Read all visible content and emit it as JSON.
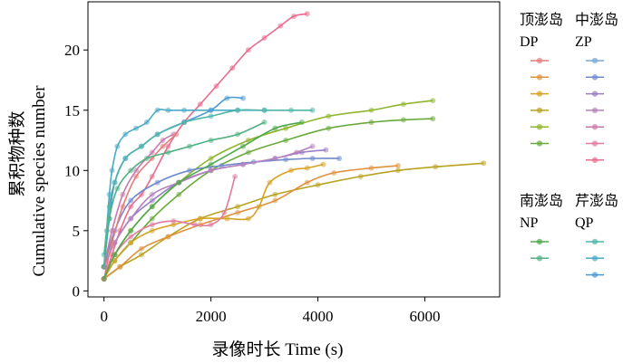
{
  "chart_data": {
    "type": "line",
    "xlabel": "录像时长 Time (s)",
    "ylabel_cn": "累积物种数",
    "ylabel_en": "Cumulative species number",
    "xlim": [
      -300,
      7400
    ],
    "ylim": [
      -0.5,
      24
    ],
    "xticks": [
      0,
      2000,
      4000,
      6000
    ],
    "yticks": [
      0,
      5,
      10,
      15,
      20
    ],
    "legend": {
      "placement": "right",
      "groups": [
        {
          "title": "顶澎岛",
          "code": "DP",
          "colors": [
            "#e57b7b",
            "#e0913f",
            "#d6a224",
            "#b9a21f",
            "#8fb52e",
            "#6aaa3c"
          ]
        },
        {
          "title": "中澎岛",
          "code": "ZP",
          "colors": [
            "#73a8d6",
            "#6f89cc",
            "#9a7fc6",
            "#b681bd",
            "#c77aab",
            "#df7ba0",
            "#e86b8d"
          ]
        },
        {
          "title": "南澎岛",
          "code": "NP",
          "colors": [
            "#4fa84a",
            "#52b184"
          ]
        },
        {
          "title": "芹澎岛",
          "code": "QP",
          "colors": [
            "#4fb5a8",
            "#4aaac6",
            "#4c9bd8"
          ]
        }
      ]
    },
    "series": [
      {
        "color": "#e86b8d",
        "x": [
          0,
          150,
          300,
          500,
          700,
          900,
          1200,
          1500,
          1800,
          2100,
          2400,
          2700,
          3000,
          3300,
          3550,
          3800
        ],
        "y": [
          1,
          3,
          5,
          7,
          8,
          9.5,
          12,
          14,
          15.5,
          17,
          18.5,
          20,
          21,
          22,
          22.8,
          23
        ]
      },
      {
        "color": "#4aaac6",
        "x": [
          0,
          50,
          100,
          150,
          250,
          400,
          600,
          800,
          1000,
          1200,
          1500,
          2000,
          2500,
          3000
        ],
        "y": [
          2,
          5,
          8,
          10,
          12,
          13,
          13.5,
          14,
          15,
          15,
          15,
          15,
          15,
          15
        ]
      },
      {
        "color": "#4c9bd8",
        "x": [
          0,
          100,
          200,
          400,
          700,
          1000,
          1500,
          2000,
          2300,
          2600
        ],
        "y": [
          2,
          6,
          9,
          11,
          12,
          13,
          14,
          15,
          16,
          16
        ]
      },
      {
        "color": "#4fb5a8",
        "x": [
          0,
          100,
          200,
          400,
          700,
          1000,
          1500,
          2000,
          2500,
          3000,
          3500,
          3900
        ],
        "y": [
          3,
          7,
          9,
          11,
          12,
          13,
          14,
          14.5,
          15,
          15,
          15,
          15
        ]
      },
      {
        "color": "#8fb52e",
        "x": [
          0,
          200,
          500,
          900,
          1400,
          2000,
          2700,
          3400,
          4200,
          5000,
          5600,
          6150
        ],
        "y": [
          1,
          3,
          5,
          7,
          9,
          11,
          12.5,
          13.5,
          14.5,
          15,
          15.5,
          15.8
        ]
      },
      {
        "color": "#6aaa3c",
        "x": [
          0,
          200,
          500,
          900,
          1400,
          2000,
          2700,
          3400,
          4200,
          5000,
          5600,
          6150
        ],
        "y": [
          1,
          2.5,
          4,
          6,
          8,
          10,
          11.5,
          12.5,
          13.5,
          14,
          14.2,
          14.3
        ]
      },
      {
        "color": "#b9a21f",
        "x": [
          0,
          300,
          700,
          1200,
          1800,
          2500,
          3200,
          4000,
          4800,
          5500,
          6200,
          7100
        ],
        "y": [
          1,
          2,
          3,
          4.5,
          6,
          7,
          8,
          8.8,
          9.5,
          10,
          10.3,
          10.6
        ]
      },
      {
        "color": "#e0913f",
        "x": [
          0,
          300,
          700,
          1200,
          1800,
          2500,
          3200,
          3800,
          4300,
          5000,
          5500
        ],
        "y": [
          1,
          2,
          3.5,
          4.5,
          5.5,
          6.5,
          7.5,
          9,
          9.8,
          10.2,
          10.4
        ]
      },
      {
        "color": "#d6a224",
        "x": [
          0,
          200,
          500,
          900,
          1300,
          1800,
          2300,
          2700,
          2900,
          3100,
          3500,
          3800,
          4100
        ],
        "y": [
          1,
          2.5,
          4,
          5,
          5.5,
          6,
          6,
          6,
          7,
          9,
          10,
          10.2,
          10.5
        ]
      },
      {
        "color": "#9a7fc6",
        "x": [
          0,
          200,
          500,
          900,
          1400,
          2000,
          2600,
          3200,
          3700,
          4150
        ],
        "y": [
          2,
          4,
          6,
          7.5,
          9,
          10,
          10.5,
          11,
          11.5,
          11.7
        ]
      },
      {
        "color": "#6f89cc",
        "x": [
          0,
          200,
          500,
          1000,
          1600,
          2200,
          2800,
          3400,
          3900,
          4400
        ],
        "y": [
          2,
          5,
          7.5,
          9,
          10,
          10.4,
          10.7,
          10.9,
          11,
          11
        ]
      },
      {
        "color": "#b681bd",
        "x": [
          0,
          200,
          500,
          900,
          1400,
          2000,
          2600,
          3200,
          3600,
          3900
        ],
        "y": [
          2,
          4,
          6,
          8,
          9,
          10,
          10.5,
          11,
          11.5,
          12
        ]
      },
      {
        "color": "#c77aab",
        "x": [
          0,
          150,
          350,
          600,
          900,
          1100,
          1300
        ],
        "y": [
          2,
          5,
          8,
          10,
          11.5,
          12.5,
          13
        ]
      },
      {
        "color": "#e57b7b",
        "x": [
          0,
          150,
          350,
          600,
          900,
          1100,
          1350
        ],
        "y": [
          1,
          4,
          7,
          9.5,
          11,
          12,
          13
        ]
      },
      {
        "color": "#df7ba0",
        "x": [
          0,
          200,
          500,
          900,
          1300,
          1700,
          2000,
          2250,
          2450
        ],
        "y": [
          1,
          3,
          4.5,
          5.5,
          5.8,
          5.5,
          5.5,
          6.5,
          9.5
        ]
      },
      {
        "color": "#52b184",
        "x": [
          0,
          100,
          250,
          500,
          800,
          1200,
          1600,
          2000,
          2500,
          3000
        ],
        "y": [
          2,
          6,
          8.5,
          10,
          11,
          11.5,
          12,
          12.5,
          13,
          14
        ]
      },
      {
        "color": "#4fa84a",
        "x": [
          0,
          200,
          500,
          900,
          1400,
          2000,
          2600,
          3200,
          3700
        ],
        "y": [
          1,
          3,
          5,
          7,
          9,
          10.5,
          12,
          13.5,
          14
        ]
      }
    ]
  }
}
